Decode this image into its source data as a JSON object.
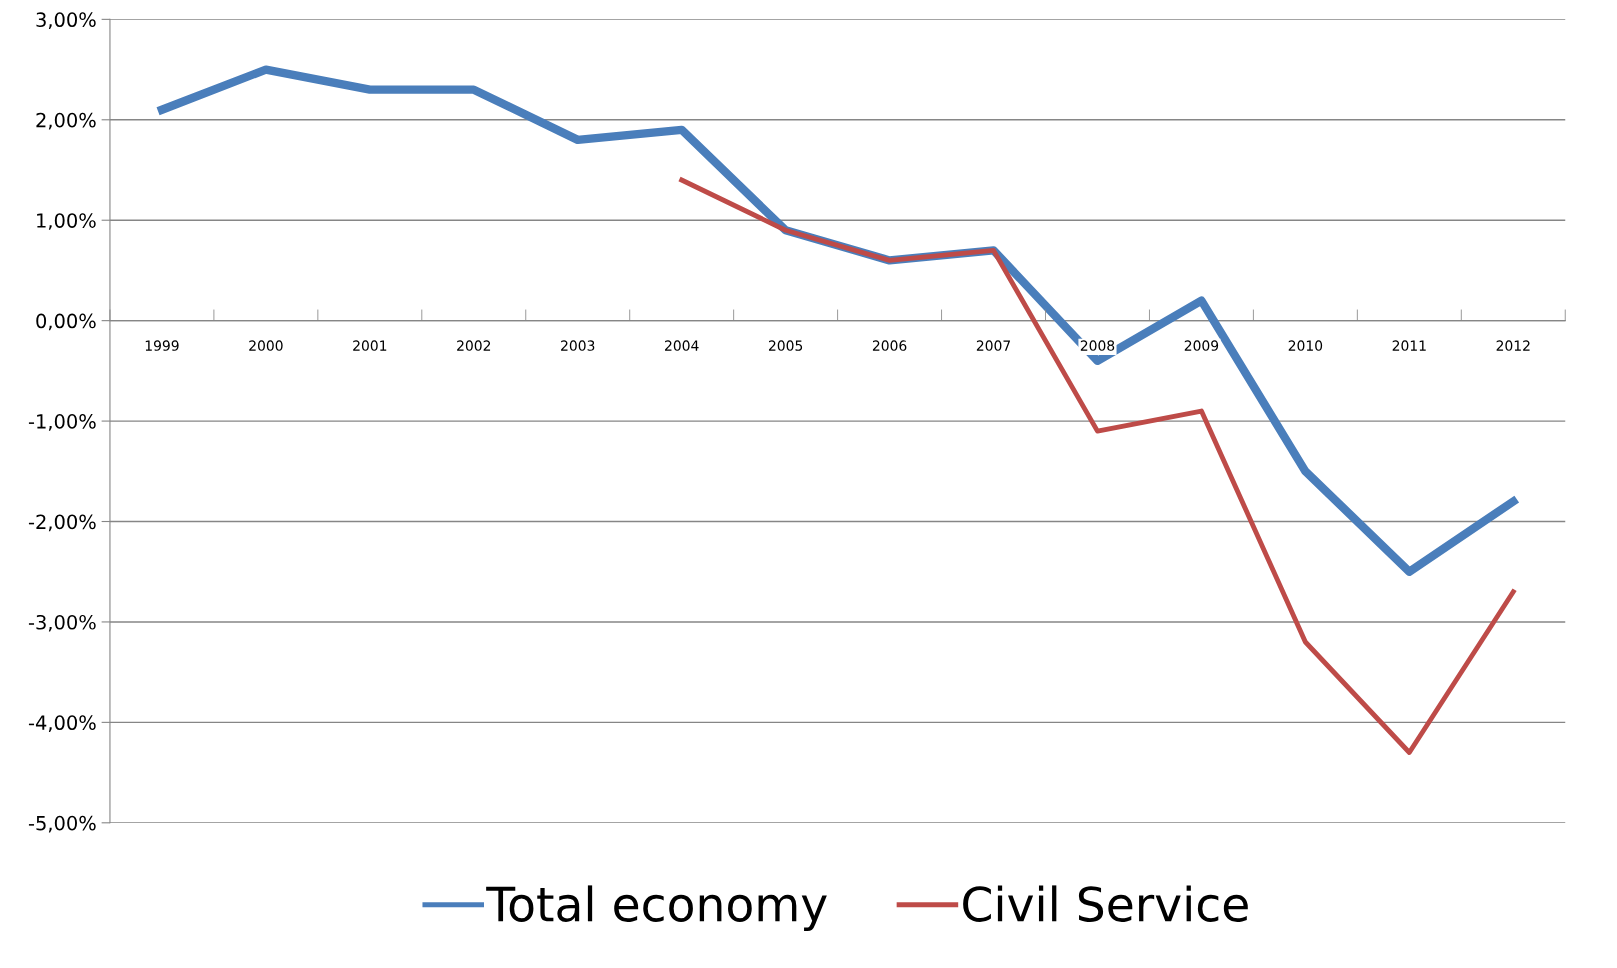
{
  "chart_data": {
    "type": "line",
    "categories": [
      "1999",
      "2000",
      "2001",
      "2002",
      "2003",
      "2004",
      "2005",
      "2006",
      "2007",
      "2008",
      "2009",
      "2010",
      "2011",
      "2012"
    ],
    "series": [
      {
        "name": "Total economy",
        "color": "#4a7ebb",
        "values": [
          2.1,
          2.5,
          2.3,
          2.3,
          1.8,
          1.9,
          0.9,
          0.6,
          0.7,
          -0.4,
          0.2,
          -1.5,
          -2.5,
          -1.8
        ]
      },
      {
        "name": "Civil Service",
        "color": "#be4b48",
        "values": [
          null,
          null,
          null,
          null,
          null,
          1.4,
          0.9,
          0.6,
          0.7,
          -1.1,
          -0.9,
          -3.2,
          -4.3,
          -2.7
        ]
      }
    ],
    "ylim": [
      -5,
      3
    ],
    "yticks": [
      {
        "value": -5,
        "label": "-5,00%"
      },
      {
        "value": -4,
        "label": "-4,00%"
      },
      {
        "value": -3,
        "label": "-3,00%"
      },
      {
        "value": -2,
        "label": "-2,00%"
      },
      {
        "value": -1,
        "label": "-1,00%"
      },
      {
        "value": 0,
        "label": "0,00%"
      },
      {
        "value": 1,
        "label": "1,00%"
      },
      {
        "value": 2,
        "label": "2,00%"
      },
      {
        "value": 3,
        "label": "3,00%"
      }
    ],
    "grid": "y",
    "legend": "bottom",
    "marker": "none",
    "line_style": "solid"
  }
}
